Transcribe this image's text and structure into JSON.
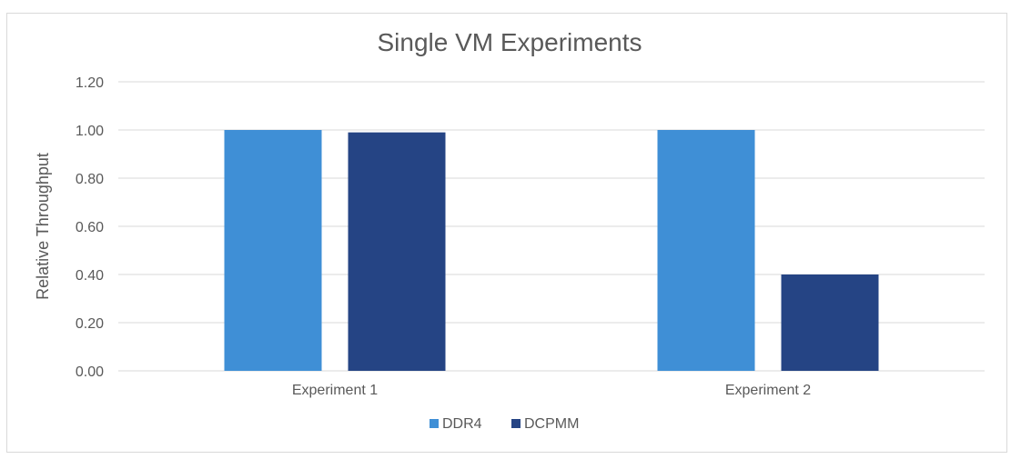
{
  "chart_data": {
    "type": "bar",
    "title": "Single VM Experiments",
    "xlabel": "",
    "ylabel": "Relative Throughput",
    "categories": [
      "Experiment 1",
      "Experiment 2"
    ],
    "series": [
      {
        "name": "DDR4",
        "values": [
          1.0,
          1.0
        ],
        "color": "#3f8fd6"
      },
      {
        "name": "DCPMM",
        "values": [
          0.99,
          0.4
        ],
        "color": "#254484"
      }
    ],
    "ylim": [
      0,
      1.2
    ],
    "yticks": [
      "0.00",
      "0.20",
      "0.40",
      "0.60",
      "0.80",
      "1.00",
      "1.20"
    ],
    "grid": true,
    "legend_position": "bottom"
  }
}
